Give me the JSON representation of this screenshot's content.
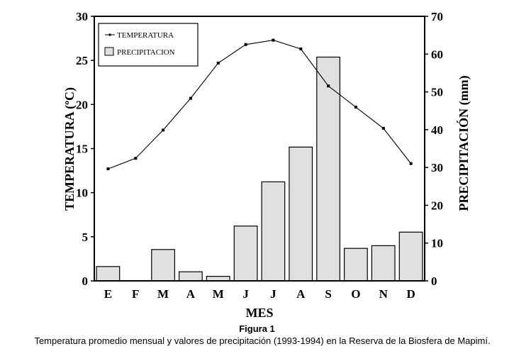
{
  "figure": {
    "label": "Figura 1",
    "caption": "Temperatura promedio mensual y valores de precipitación (1993-1994) en la Reserva de la Biosfera de Mapimí."
  },
  "chart_data": {
    "type": "bar",
    "categories": [
      "E",
      "F",
      "M",
      "A",
      "M",
      "J",
      "J",
      "A",
      "S",
      "O",
      "N",
      "D"
    ],
    "xlabel": "MES",
    "ylabel": "TEMPERATURA (ºC)",
    "y2label": "PRECIPITACIÓN (mm)",
    "ylim": [
      0,
      30
    ],
    "y2lim": [
      0,
      70
    ],
    "yticks": [
      "0",
      "5",
      "10",
      "15",
      "20",
      "25",
      "30"
    ],
    "y2ticks": [
      "0",
      "10",
      "20",
      "30",
      "40",
      "50",
      "60",
      "70"
    ],
    "legend_position": "top-left",
    "series": [
      {
        "name": "PRECIPITACION",
        "type": "bar",
        "axis": "right",
        "color": "#e0e0e0",
        "values": [
          3.8,
          0.0,
          8.3,
          2.4,
          1.2,
          14.5,
          26.2,
          35.4,
          59.2,
          8.6,
          9.3,
          12.9
        ]
      },
      {
        "name": "TEMPERATURA",
        "type": "line",
        "axis": "left",
        "color": "#000000",
        "values": [
          12.7,
          13.9,
          17.1,
          20.7,
          24.7,
          26.8,
          27.3,
          26.3,
          22.1,
          19.7,
          17.3,
          13.3
        ]
      }
    ]
  }
}
